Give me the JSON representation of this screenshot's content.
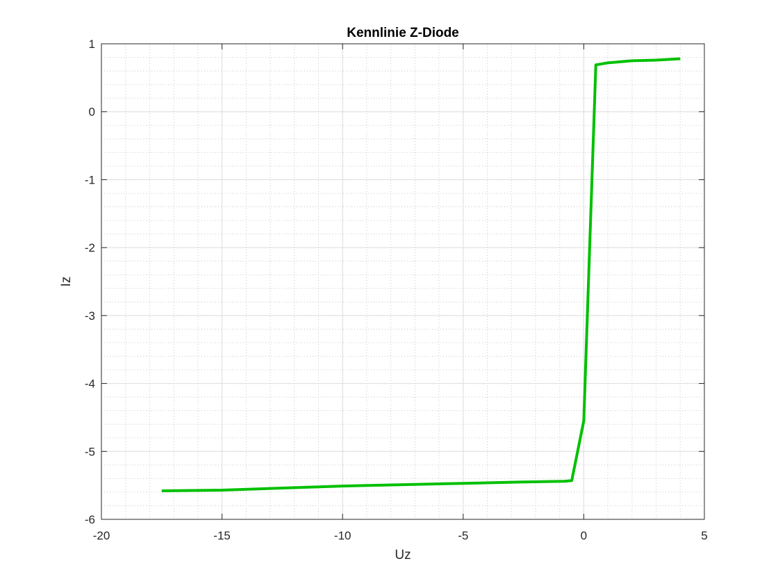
{
  "chart_data": {
    "type": "line",
    "title": "Kennlinie Z-Diode",
    "xlabel": "Uz",
    "ylabel": "Iz",
    "xlim": [
      -20,
      5
    ],
    "ylim": [
      -6,
      1
    ],
    "x_ticks": [
      -20,
      -15,
      -10,
      -5,
      0,
      5
    ],
    "x_tick_labels": [
      "-20",
      "-15",
      "-10",
      "-5",
      "0",
      "5"
    ],
    "y_ticks": [
      -6,
      -5,
      -4,
      -3,
      -2,
      -1,
      0,
      1
    ],
    "y_tick_labels": [
      "-6",
      "-5",
      "-4",
      "-3",
      "-2",
      "-1",
      "0",
      "1"
    ],
    "grid": true,
    "minor_grid": true,
    "box": true,
    "series": [
      {
        "color": "#00c000",
        "x": [
          -17.5,
          -15,
          -12.5,
          -10,
          -7.5,
          -5,
          -2.5,
          -0.8,
          -0.5,
          0,
          0.5,
          1,
          2,
          3,
          4
        ],
        "y": [
          -5.58,
          -5.57,
          -5.54,
          -5.51,
          -5.49,
          -5.47,
          -5.45,
          -5.44,
          -5.43,
          -4.55,
          0.69,
          0.72,
          0.75,
          0.76,
          0.78
        ]
      }
    ]
  }
}
